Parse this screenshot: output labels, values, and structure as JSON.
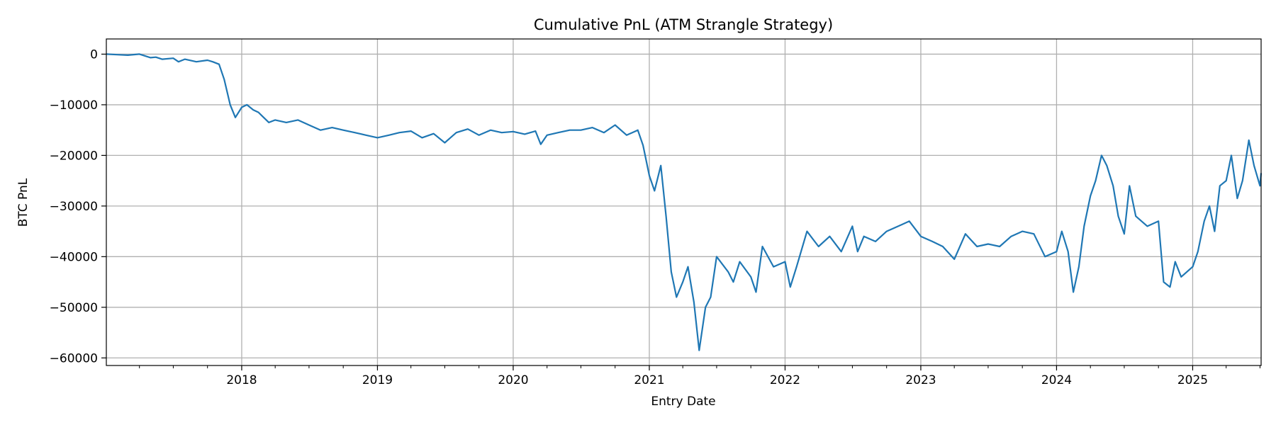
{
  "chart_data": {
    "type": "line",
    "title": "Cumulative PnL (ATM Strangle Strategy)",
    "xlabel": "Entry Date",
    "ylabel": "BTC PnL",
    "x_range": [
      "2017-01-02",
      "2025-07-04"
    ],
    "ylim": [
      -61500,
      3000
    ],
    "grid": true,
    "line_color": "#1f77b4",
    "grid_color": "#b0b0b0",
    "x_ticks": [
      {
        "date": "2018-01-01",
        "label": "2018"
      },
      {
        "date": "2019-01-01",
        "label": "2019"
      },
      {
        "date": "2020-01-01",
        "label": "2020"
      },
      {
        "date": "2021-01-01",
        "label": "2021"
      },
      {
        "date": "2022-01-01",
        "label": "2022"
      },
      {
        "date": "2023-01-01",
        "label": "2023"
      },
      {
        "date": "2024-01-01",
        "label": "2024"
      },
      {
        "date": "2025-01-01",
        "label": "2025"
      }
    ],
    "y_ticks": [
      {
        "value": 0,
        "label": "0"
      },
      {
        "value": -10000,
        "label": "−10000"
      },
      {
        "value": -20000,
        "label": "−20000"
      },
      {
        "value": -30000,
        "label": "−30000"
      },
      {
        "value": -40000,
        "label": "−40000"
      },
      {
        "value": -50000,
        "label": "−50000"
      },
      {
        "value": -60000,
        "label": "−60000"
      }
    ],
    "series": [
      {
        "points": [
          [
            "2017-01-02",
            0
          ],
          [
            "2017-02-01",
            -100
          ],
          [
            "2017-03-01",
            -200
          ],
          [
            "2017-04-01",
            0
          ],
          [
            "2017-05-01",
            -700
          ],
          [
            "2017-05-15",
            -600
          ],
          [
            "2017-06-01",
            -1000
          ],
          [
            "2017-07-01",
            -800
          ],
          [
            "2017-07-15",
            -1500
          ],
          [
            "2017-08-01",
            -1000
          ],
          [
            "2017-09-01",
            -1500
          ],
          [
            "2017-10-01",
            -1200
          ],
          [
            "2017-10-15",
            -1500
          ],
          [
            "2017-11-01",
            -2000
          ],
          [
            "2017-11-15",
            -5000
          ],
          [
            "2017-12-01",
            -10000
          ],
          [
            "2017-12-15",
            -12500
          ],
          [
            "2018-01-01",
            -10500
          ],
          [
            "2018-01-15",
            -10000
          ],
          [
            "2018-02-01",
            -11000
          ],
          [
            "2018-02-15",
            -11500
          ],
          [
            "2018-03-01",
            -12500
          ],
          [
            "2018-03-15",
            -13500
          ],
          [
            "2018-04-01",
            -13000
          ],
          [
            "2018-05-01",
            -13500
          ],
          [
            "2018-06-01",
            -13000
          ],
          [
            "2018-07-01",
            -14000
          ],
          [
            "2018-08-01",
            -15000
          ],
          [
            "2018-09-01",
            -14500
          ],
          [
            "2018-10-01",
            -15000
          ],
          [
            "2018-11-01",
            -15500
          ],
          [
            "2018-12-01",
            -16000
          ],
          [
            "2019-01-01",
            -16500
          ],
          [
            "2019-02-01",
            -16000
          ],
          [
            "2019-03-01",
            -15500
          ],
          [
            "2019-04-01",
            -15200
          ],
          [
            "2019-05-01",
            -16500
          ],
          [
            "2019-06-01",
            -15700
          ],
          [
            "2019-07-01",
            -17500
          ],
          [
            "2019-08-01",
            -15500
          ],
          [
            "2019-09-01",
            -14800
          ],
          [
            "2019-10-01",
            -16000
          ],
          [
            "2019-11-01",
            -15000
          ],
          [
            "2019-12-01",
            -15500
          ],
          [
            "2020-01-01",
            -15300
          ],
          [
            "2020-02-01",
            -15800
          ],
          [
            "2020-03-01",
            -15200
          ],
          [
            "2020-03-15",
            -17800
          ],
          [
            "2020-04-01",
            -16000
          ],
          [
            "2020-05-01",
            -15500
          ],
          [
            "2020-06-01",
            -15000
          ],
          [
            "2020-07-01",
            -15000
          ],
          [
            "2020-08-01",
            -14500
          ],
          [
            "2020-09-01",
            -15500
          ],
          [
            "2020-10-01",
            -14000
          ],
          [
            "2020-11-01",
            -16000
          ],
          [
            "2020-12-01",
            -15000
          ],
          [
            "2020-12-15",
            -18000
          ],
          [
            "2021-01-01",
            -24000
          ],
          [
            "2021-01-15",
            -27000
          ],
          [
            "2021-02-01",
            -22000
          ],
          [
            "2021-02-15",
            -32000
          ],
          [
            "2021-03-01",
            -43000
          ],
          [
            "2021-03-15",
            -48000
          ],
          [
            "2021-04-01",
            -45000
          ],
          [
            "2021-04-15",
            -42000
          ],
          [
            "2021-05-01",
            -49000
          ],
          [
            "2021-05-15",
            -58500
          ],
          [
            "2021-06-01",
            -50000
          ],
          [
            "2021-06-15",
            -48000
          ],
          [
            "2021-07-01",
            -40000
          ],
          [
            "2021-08-01",
            -43000
          ],
          [
            "2021-08-15",
            -45000
          ],
          [
            "2021-09-01",
            -41000
          ],
          [
            "2021-10-01",
            -44000
          ],
          [
            "2021-10-15",
            -47000
          ],
          [
            "2021-11-01",
            -38000
          ],
          [
            "2021-12-01",
            -42000
          ],
          [
            "2022-01-01",
            -41000
          ],
          [
            "2022-01-15",
            -46000
          ],
          [
            "2022-02-01",
            -42000
          ],
          [
            "2022-03-01",
            -35000
          ],
          [
            "2022-04-01",
            -38000
          ],
          [
            "2022-05-01",
            -36000
          ],
          [
            "2022-06-01",
            -39000
          ],
          [
            "2022-07-01",
            -34000
          ],
          [
            "2022-07-15",
            -39000
          ],
          [
            "2022-08-01",
            -36000
          ],
          [
            "2022-09-01",
            -37000
          ],
          [
            "2022-10-01",
            -35000
          ],
          [
            "2022-11-01",
            -34000
          ],
          [
            "2022-12-01",
            -33000
          ],
          [
            "2023-01-01",
            -36000
          ],
          [
            "2023-02-01",
            -37000
          ],
          [
            "2023-03-01",
            -38000
          ],
          [
            "2023-04-01",
            -40500
          ],
          [
            "2023-05-01",
            -35500
          ],
          [
            "2023-06-01",
            -38000
          ],
          [
            "2023-07-01",
            -37500
          ],
          [
            "2023-08-01",
            -38000
          ],
          [
            "2023-09-01",
            -36000
          ],
          [
            "2023-10-01",
            -35000
          ],
          [
            "2023-11-01",
            -35500
          ],
          [
            "2023-12-01",
            -40000
          ],
          [
            "2024-01-01",
            -39000
          ],
          [
            "2024-01-15",
            -35000
          ],
          [
            "2024-02-01",
            -39000
          ],
          [
            "2024-02-15",
            -47000
          ],
          [
            "2024-03-01",
            -42000
          ],
          [
            "2024-03-15",
            -34000
          ],
          [
            "2024-04-01",
            -28000
          ],
          [
            "2024-04-15",
            -25000
          ],
          [
            "2024-05-01",
            -20000
          ],
          [
            "2024-05-15",
            -22000
          ],
          [
            "2024-06-01",
            -26000
          ],
          [
            "2024-06-15",
            -32000
          ],
          [
            "2024-07-01",
            -35500
          ],
          [
            "2024-07-15",
            -26000
          ],
          [
            "2024-08-01",
            -32000
          ],
          [
            "2024-09-01",
            -34000
          ],
          [
            "2024-10-01",
            -33000
          ],
          [
            "2024-10-15",
            -45000
          ],
          [
            "2024-11-01",
            -46000
          ],
          [
            "2024-11-15",
            -41000
          ],
          [
            "2024-12-01",
            -44000
          ],
          [
            "2025-01-01",
            -42000
          ],
          [
            "2025-01-15",
            -39000
          ],
          [
            "2025-02-01",
            -33000
          ],
          [
            "2025-02-15",
            -30000
          ],
          [
            "2025-03-01",
            -35000
          ],
          [
            "2025-03-15",
            -26000
          ],
          [
            "2025-04-01",
            -25000
          ],
          [
            "2025-04-15",
            -20000
          ],
          [
            "2025-05-01",
            -28500
          ],
          [
            "2025-05-15",
            -25000
          ],
          [
            "2025-06-01",
            -17000
          ],
          [
            "2025-06-15",
            -22000
          ],
          [
            "2025-07-01",
            -26000
          ],
          [
            "2025-07-04",
            -23500
          ]
        ]
      }
    ]
  }
}
